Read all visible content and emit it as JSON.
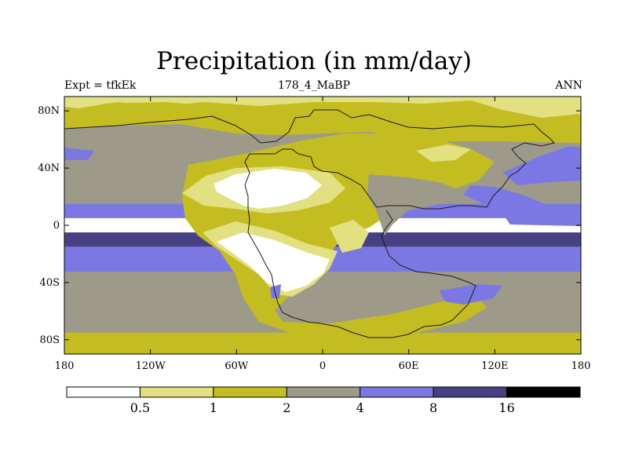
{
  "title": "Precipitation (in mm/day)",
  "subtitle_left": "Expt = tfkEk",
  "subtitle_center": "178_4_MaBP",
  "subtitle_right": "ANN",
  "colors": {
    "band0": "#ffffff",
    "band1": "#e3e081",
    "band2": "#c4bd22",
    "band3": "#9e9a8a",
    "band4": "#7b78e3",
    "band5": "#474184",
    "band6": "#000000",
    "coastline": "#1a1a1a"
  },
  "chart_data": {
    "type": "heatmap",
    "title": "Precipitation (in mm/day)",
    "xlabel": "",
    "ylabel": "",
    "x_ticks": [
      "180",
      "120W",
      "60W",
      "0",
      "60E",
      "120E",
      "180"
    ],
    "y_ticks": [
      "80N",
      "40N",
      "0",
      "40S",
      "80S"
    ],
    "xlim": [
      -180,
      180
    ],
    "ylim": [
      -90,
      90
    ],
    "colorbar": {
      "levels": [
        "0.5",
        "1",
        "2",
        "4",
        "8",
        "16"
      ],
      "units": "mm/day"
    },
    "latitude_bands": [
      {
        "lat": 85,
        "value": 1.5
      },
      {
        "lat": 60,
        "value": 2.5
      },
      {
        "lat": 40,
        "value": 3.0
      },
      {
        "lat": 20,
        "value": 3.0
      },
      {
        "lat": 10,
        "value": 6.0
      },
      {
        "lat": 0,
        "value": 0.3
      },
      {
        "lat": -10,
        "value": 9.0
      },
      {
        "lat": -20,
        "value": 5.0
      },
      {
        "lat": -45,
        "value": 3.0
      },
      {
        "lat": -65,
        "value": 3.0
      },
      {
        "lat": -85,
        "value": 1.5
      }
    ]
  }
}
